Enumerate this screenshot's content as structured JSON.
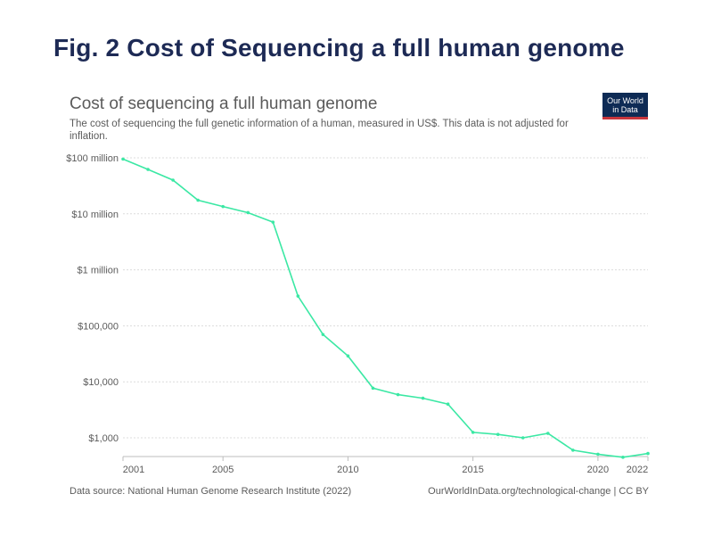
{
  "figure_title": "Fig. 2 Cost of Sequencing a full human genome",
  "logo": {
    "line1": "Our World",
    "line2": "in Data"
  },
  "footer": {
    "source": "Data source: National Human Genome Research Institute (2022)",
    "credit": "OurWorldInData.org/technological-change | CC BY"
  },
  "colors": {
    "series": "#3be8a4",
    "title": "#1d2a55",
    "text": "#5b5b5b",
    "logo_bg": "#0e2b55",
    "logo_accent": "#c8363d"
  },
  "chart_data": {
    "type": "line",
    "title": "Cost of sequencing a full human genome",
    "subtitle": "The cost of sequencing the full genetic information of a human, measured in US$. This data is not adjusted for inflation.",
    "xlabel": "",
    "ylabel": "",
    "yscale": "log",
    "xlim": [
      2001,
      2022
    ],
    "ylim": [
      500,
      100000000
    ],
    "x_ticks": [
      2001,
      2005,
      2010,
      2015,
      2020,
      2022
    ],
    "y_ticks": [
      {
        "value": 100000000,
        "label": "$100 million"
      },
      {
        "value": 10000000,
        "label": "$10 million"
      },
      {
        "value": 1000000,
        "label": "$1 million"
      },
      {
        "value": 100000,
        "label": "$100,000"
      },
      {
        "value": 10000,
        "label": "$10,000"
      },
      {
        "value": 1000,
        "label": "$1,000"
      }
    ],
    "series": [
      {
        "name": "Cost",
        "x": [
          2001,
          2002,
          2003,
          2004,
          2005,
          2006,
          2007,
          2008,
          2009,
          2010,
          2011,
          2012,
          2013,
          2014,
          2015,
          2016,
          2017,
          2018,
          2019,
          2020,
          2021,
          2022
        ],
        "values": [
          95000000,
          62000000,
          40000000,
          17500000,
          13500000,
          10500000,
          7100000,
          340000,
          70000,
          29000,
          7700,
          5900,
          5100,
          4000,
          1250,
          1150,
          1000,
          1200,
          600,
          510,
          450,
          525
        ]
      }
    ]
  }
}
